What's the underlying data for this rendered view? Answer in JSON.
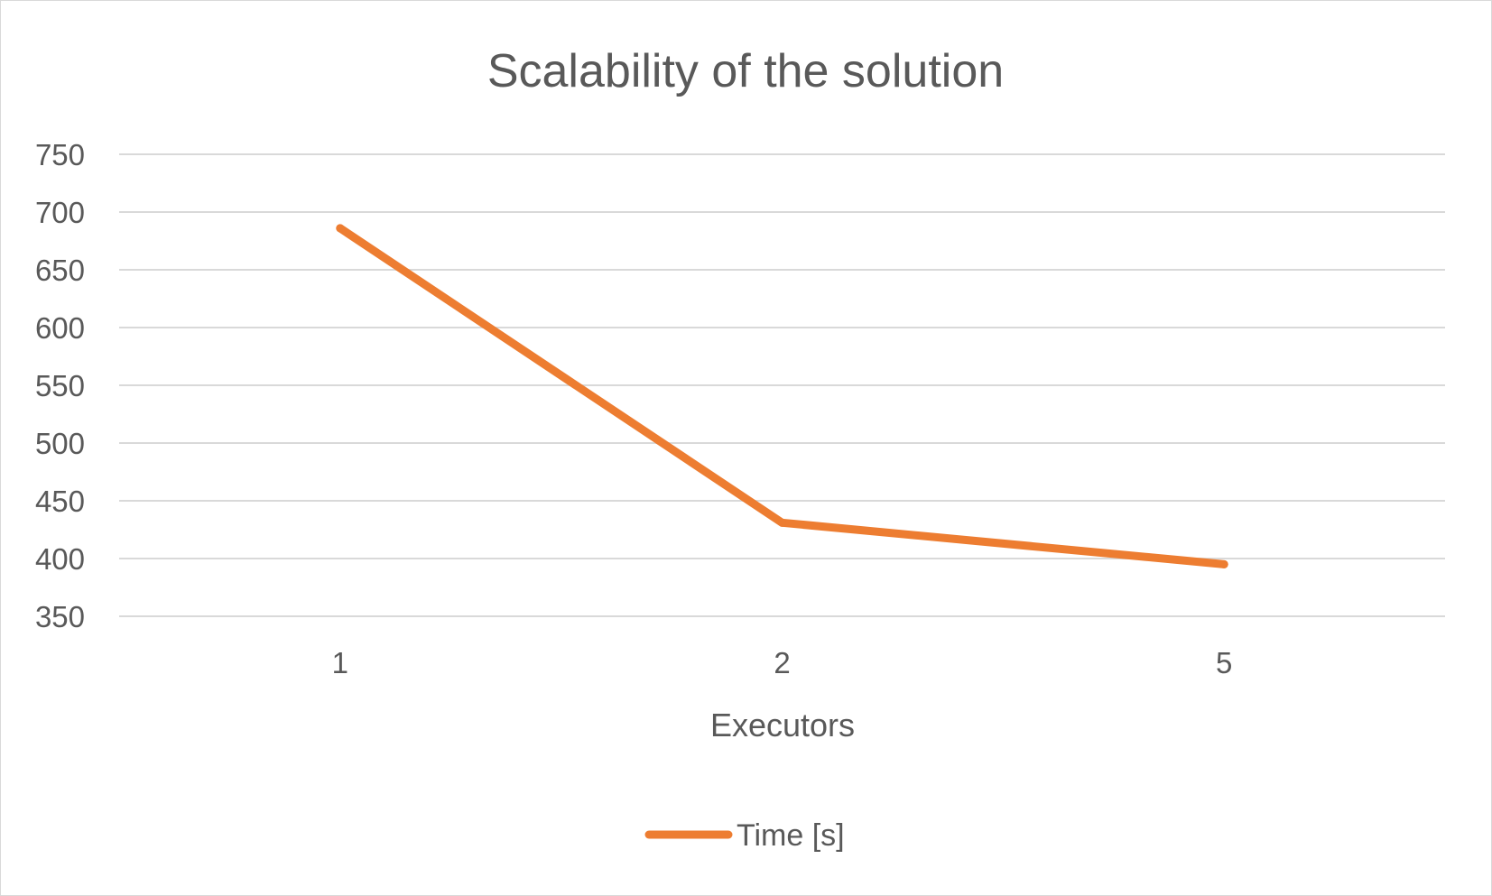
{
  "chart_data": {
    "type": "line",
    "title": "Scalability of the solution",
    "xlabel": "Executors",
    "ylabel": "",
    "categories": [
      "1",
      "2",
      "5"
    ],
    "series": [
      {
        "name": "Time [s]",
        "values": [
          686,
          431,
          395
        ],
        "color": "#ED7D31"
      }
    ],
    "ylim": [
      350,
      750
    ],
    "yticks": [
      350,
      400,
      450,
      500,
      550,
      600,
      650,
      700,
      750
    ],
    "grid": true,
    "legend": "bottom"
  }
}
